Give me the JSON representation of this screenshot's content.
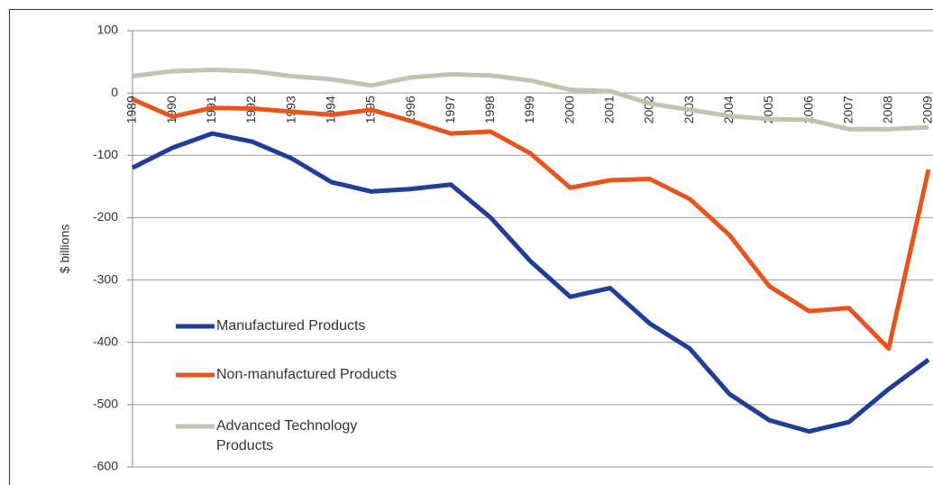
{
  "chart_data": {
    "type": "line",
    "y_label": "$ billions",
    "categories": [
      "1989",
      "1990",
      "1991",
      "1992",
      "1993",
      "1994",
      "1995",
      "1996",
      "1997",
      "1998",
      "1999",
      "2000",
      "2001",
      "2002",
      "2003",
      "2004",
      "2005",
      "2006",
      "2007",
      "2008",
      "2009"
    ],
    "series": [
      {
        "name": "Manufactured Products",
        "color": "#1f3d99",
        "values": [
          -120,
          -88,
          -65,
          -78,
          -105,
          -143,
          -158,
          -154,
          -147,
          -200,
          -270,
          -327,
          -313,
          -370,
          -410,
          -483,
          -525,
          -543,
          -528,
          -475,
          -428
        ]
      },
      {
        "name": "Non-manufactured Products",
        "color": "#e8541c",
        "values": [
          -10,
          -38,
          -24,
          -25,
          -30,
          -35,
          -27,
          -45,
          -65,
          -62,
          -97,
          -152,
          -140,
          -138,
          -170,
          -228,
          -310,
          -350,
          -345,
          -410,
          -123
        ]
      },
      {
        "name": "Advanced Technology Products",
        "color": "#c4c3b0",
        "values": [
          27,
          35,
          37,
          35,
          27,
          22,
          12,
          25,
          30,
          28,
          20,
          5,
          3,
          -17,
          -27,
          -37,
          -42,
          -43,
          -58,
          -58,
          -55
        ]
      }
    ],
    "ylim": [
      -600,
      100
    ],
    "yticks": [
      -600,
      -500,
      -400,
      -300,
      -200,
      -100,
      0,
      100
    ],
    "grid": true,
    "legend": "bottom-left"
  }
}
